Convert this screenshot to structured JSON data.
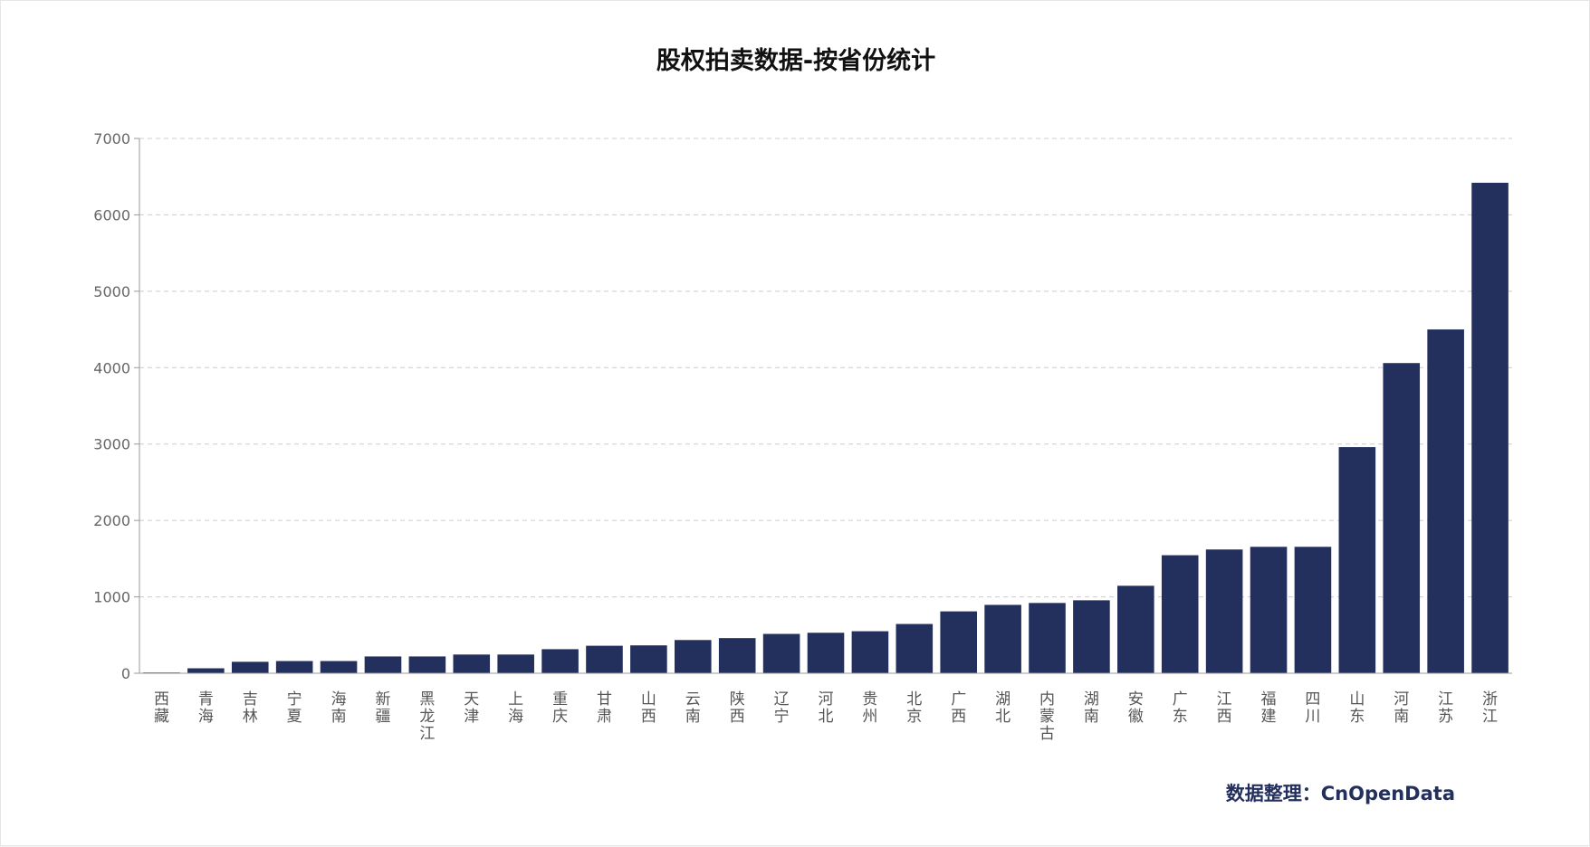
{
  "chart_data": {
    "type": "bar",
    "title": "股权拍卖数据-按省份统计",
    "xlabel": "",
    "ylabel": "",
    "ylim": [
      0,
      7000
    ],
    "yticks": [
      0,
      1000,
      2000,
      3000,
      4000,
      5000,
      6000,
      7000
    ],
    "grid": true,
    "categories": [
      "西藏",
      "青海",
      "吉林",
      "宁夏",
      "海南",
      "新疆",
      "黑龙江",
      "天津",
      "上海",
      "重庆",
      "甘肃",
      "山西",
      "云南",
      "陕西",
      "辽宁",
      "河北",
      "贵州",
      "北京",
      "广西",
      "湖北",
      "内蒙古",
      "湖南",
      "安徽",
      "广东",
      "江西",
      "福建",
      "四川",
      "山东",
      "河南",
      "江苏",
      "浙江"
    ],
    "values": [
      10,
      65,
      150,
      160,
      160,
      220,
      220,
      245,
      245,
      315,
      360,
      365,
      435,
      460,
      515,
      530,
      550,
      645,
      810,
      895,
      920,
      955,
      1145,
      1545,
      1620,
      1655,
      1655,
      2960,
      4060,
      4500,
      6420
    ],
    "bar_color": "#23305e"
  },
  "credit": "数据整理：CnOpenData"
}
